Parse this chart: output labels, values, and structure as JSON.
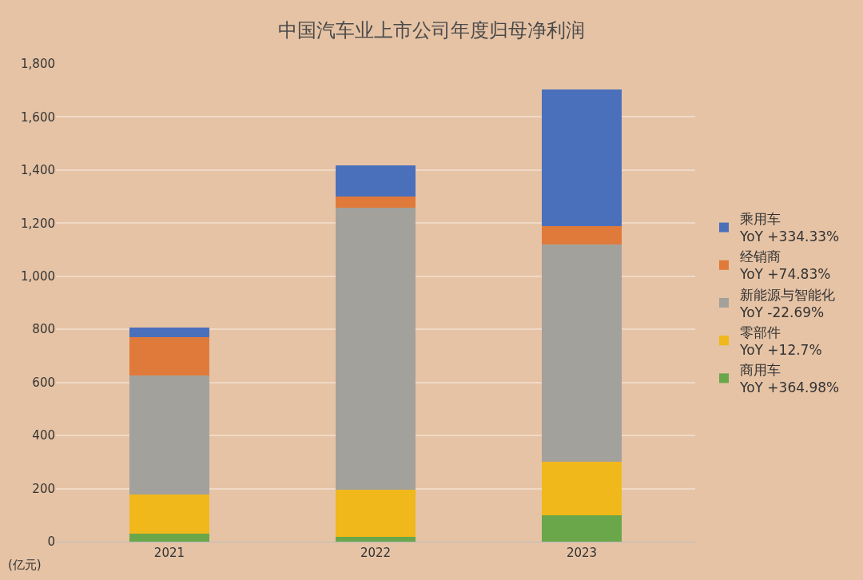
{
  "chart_data": {
    "type": "bar",
    "title": "中国汽车业上市公司年度归母净利润",
    "ylabel": "(亿元)",
    "categories": [
      "2021",
      "2022",
      "2023"
    ],
    "stacked": true,
    "series": [
      {
        "name": "商用车\nYoY +364.98%",
        "color": "#6aa64a",
        "values": [
          30,
          18,
          98
        ]
      },
      {
        "name": "零部件\nYoY +12.7%",
        "color": "#f0b81a",
        "values": [
          148,
          178,
          202
        ]
      },
      {
        "name": "新能源与智能化\nYoY -22.69%",
        "color": "#a3a19c",
        "values": [
          448,
          1061,
          819
        ]
      },
      {
        "name": "经销商\nYoY +74.83%",
        "color": "#e07a3a",
        "values": [
          144,
          43,
          71
        ]
      },
      {
        "name": "乘用车\nYoY +334.33%",
        "color": "#4a70bc",
        "values": [
          37,
          117,
          515
        ]
      }
    ],
    "ylim": [
      0,
      1800
    ],
    "yticks": [
      0,
      200,
      400,
      600,
      800,
      {
        "value": 1000,
        "label": "1,000"
      },
      {
        "value": 1200,
        "label": "1,200"
      },
      {
        "value": 1400,
        "label": "1,400"
      },
      {
        "value": 1600,
        "label": "1,600"
      },
      {
        "value": 1800,
        "label": "1,800"
      }
    ],
    "grid": "y",
    "legend": "right"
  }
}
